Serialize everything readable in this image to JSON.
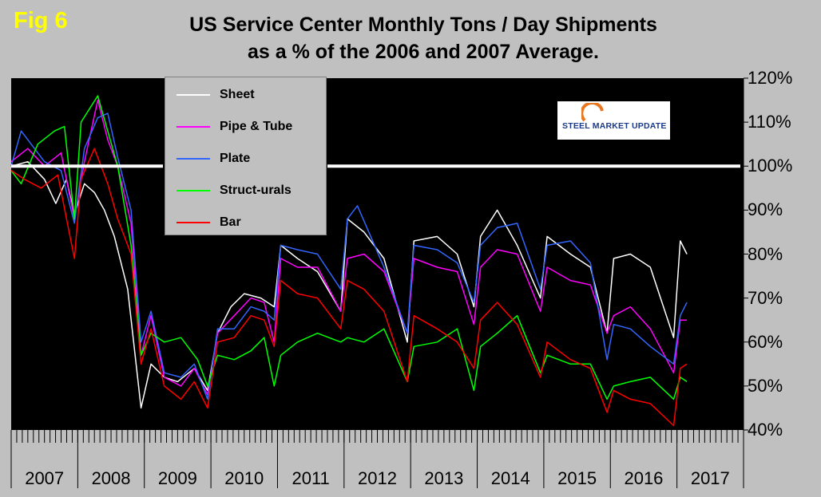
{
  "fig_label": "Fig 6",
  "title_line1": "US Service Center Monthly Tons / Day Shipments",
  "title_line2": "as a % of the 2006 and 2007 Average.",
  "logo": {
    "text": "STEEL MARKET UPDATE"
  },
  "colors": {
    "Sheet": "#ffffff",
    "Pipe & Tube": "#ff00ff",
    "Plate": "#3366ff",
    "Struct-urals": "#00ff00",
    "Bar": "#ff0000",
    "background": "#000000",
    "reference_line": "#ffffff"
  },
  "chart_data": {
    "type": "line",
    "title": "US Service Center Monthly Tons / Day Shipments as a % of the 2006 and 2007 Average.",
    "xlabel": "",
    "ylabel": "",
    "ylim": [
      40,
      120
    ],
    "ytick_labels": [
      "120%",
      "110%",
      "100%",
      "90%",
      "80%",
      "70%",
      "60%",
      "50%",
      "40%"
    ],
    "ytick_values": [
      120,
      110,
      100,
      90,
      80,
      70,
      60,
      50,
      40
    ],
    "x_years": [
      "2007",
      "2008",
      "2009",
      "2010",
      "2011",
      "2012",
      "2013",
      "2014",
      "2015",
      "2016",
      "2017"
    ],
    "reference_line": 100,
    "grid": false,
    "legend_position": "top-left",
    "series": [
      {
        "name": "Sheet",
        "points": [
          [
            2007.0,
            100
          ],
          [
            2007.25,
            101
          ],
          [
            2007.5,
            97
          ],
          [
            2007.67,
            91.5
          ],
          [
            2007.83,
            97
          ],
          [
            2007.95,
            89
          ],
          [
            2008.1,
            96
          ],
          [
            2008.25,
            94
          ],
          [
            2008.4,
            90
          ],
          [
            2008.55,
            84
          ],
          [
            2008.75,
            72
          ],
          [
            2008.95,
            45
          ],
          [
            2009.1,
            55
          ],
          [
            2009.3,
            52
          ],
          [
            2009.5,
            51
          ],
          [
            2009.75,
            54
          ],
          [
            2009.95,
            49
          ],
          [
            2010.1,
            62
          ],
          [
            2010.3,
            68
          ],
          [
            2010.5,
            71
          ],
          [
            2010.75,
            70
          ],
          [
            2010.95,
            68
          ],
          [
            2011.05,
            82
          ],
          [
            2011.3,
            79
          ],
          [
            2011.6,
            76
          ],
          [
            2011.95,
            67
          ],
          [
            2012.05,
            88
          ],
          [
            2012.3,
            85
          ],
          [
            2012.6,
            79
          ],
          [
            2012.95,
            60
          ],
          [
            2013.05,
            83
          ],
          [
            2013.4,
            84
          ],
          [
            2013.7,
            80
          ],
          [
            2013.95,
            68
          ],
          [
            2014.05,
            84
          ],
          [
            2014.3,
            90
          ],
          [
            2014.6,
            82
          ],
          [
            2014.95,
            70
          ],
          [
            2015.05,
            84
          ],
          [
            2015.4,
            80
          ],
          [
            2015.7,
            77
          ],
          [
            2015.95,
            62
          ],
          [
            2016.05,
            79
          ],
          [
            2016.3,
            80
          ],
          [
            2016.6,
            77
          ],
          [
            2016.95,
            61
          ],
          [
            2017.05,
            83
          ],
          [
            2017.15,
            80
          ]
        ]
      },
      {
        "name": "Pipe & Tube",
        "points": [
          [
            2007.0,
            101
          ],
          [
            2007.25,
            104
          ],
          [
            2007.5,
            100
          ],
          [
            2007.75,
            103
          ],
          [
            2007.95,
            88
          ],
          [
            2008.1,
            101
          ],
          [
            2008.3,
            115
          ],
          [
            2008.45,
            106
          ],
          [
            2008.6,
            100
          ],
          [
            2008.8,
            87
          ],
          [
            2008.95,
            57
          ],
          [
            2009.1,
            66
          ],
          [
            2009.3,
            52
          ],
          [
            2009.55,
            50
          ],
          [
            2009.75,
            54
          ],
          [
            2009.95,
            48
          ],
          [
            2010.1,
            62
          ],
          [
            2010.35,
            66
          ],
          [
            2010.6,
            70
          ],
          [
            2010.8,
            69
          ],
          [
            2010.95,
            60
          ],
          [
            2011.05,
            79
          ],
          [
            2011.3,
            77
          ],
          [
            2011.6,
            77
          ],
          [
            2011.95,
            67
          ],
          [
            2012.05,
            79
          ],
          [
            2012.3,
            80
          ],
          [
            2012.6,
            76
          ],
          [
            2012.95,
            62
          ],
          [
            2013.05,
            79
          ],
          [
            2013.4,
            77
          ],
          [
            2013.7,
            76
          ],
          [
            2013.95,
            64
          ],
          [
            2014.05,
            77
          ],
          [
            2014.3,
            81
          ],
          [
            2014.6,
            80
          ],
          [
            2014.95,
            67
          ],
          [
            2015.05,
            77
          ],
          [
            2015.4,
            74
          ],
          [
            2015.7,
            73
          ],
          [
            2015.95,
            62
          ],
          [
            2016.05,
            66
          ],
          [
            2016.3,
            68
          ],
          [
            2016.6,
            63
          ],
          [
            2016.95,
            53
          ],
          [
            2017.05,
            65
          ],
          [
            2017.15,
            65
          ]
        ]
      },
      {
        "name": "Plate",
        "points": [
          [
            2007.0,
            100
          ],
          [
            2007.15,
            108
          ],
          [
            2007.5,
            101
          ],
          [
            2007.75,
            99
          ],
          [
            2007.95,
            87
          ],
          [
            2008.1,
            104
          ],
          [
            2008.3,
            111
          ],
          [
            2008.45,
            112
          ],
          [
            2008.6,
            102
          ],
          [
            2008.8,
            90
          ],
          [
            2008.95,
            60
          ],
          [
            2009.1,
            67
          ],
          [
            2009.3,
            53
          ],
          [
            2009.55,
            52
          ],
          [
            2009.75,
            55
          ],
          [
            2009.95,
            47
          ],
          [
            2010.1,
            63
          ],
          [
            2010.35,
            63
          ],
          [
            2010.6,
            68
          ],
          [
            2010.8,
            67
          ],
          [
            2010.95,
            65
          ],
          [
            2011.05,
            82
          ],
          [
            2011.3,
            81
          ],
          [
            2011.6,
            80
          ],
          [
            2011.95,
            72
          ],
          [
            2012.05,
            88
          ],
          [
            2012.2,
            91
          ],
          [
            2012.4,
            84
          ],
          [
            2012.6,
            77
          ],
          [
            2012.95,
            62
          ],
          [
            2013.05,
            82
          ],
          [
            2013.4,
            81
          ],
          [
            2013.7,
            78
          ],
          [
            2013.95,
            69
          ],
          [
            2014.05,
            82
          ],
          [
            2014.3,
            86
          ],
          [
            2014.6,
            87
          ],
          [
            2014.95,
            72
          ],
          [
            2015.05,
            82
          ],
          [
            2015.4,
            83
          ],
          [
            2015.7,
            78
          ],
          [
            2015.95,
            56
          ],
          [
            2016.05,
            64
          ],
          [
            2016.3,
            63
          ],
          [
            2016.6,
            59
          ],
          [
            2016.95,
            55
          ],
          [
            2017.05,
            66
          ],
          [
            2017.15,
            69
          ]
        ]
      },
      {
        "name": "Struct-urals",
        "points": [
          [
            2007.0,
            99
          ],
          [
            2007.15,
            96
          ],
          [
            2007.4,
            105
          ],
          [
            2007.65,
            108
          ],
          [
            2007.8,
            109
          ],
          [
            2007.95,
            88
          ],
          [
            2008.05,
            110
          ],
          [
            2008.3,
            116
          ],
          [
            2008.45,
            108
          ],
          [
            2008.6,
            100
          ],
          [
            2008.8,
            82
          ],
          [
            2008.95,
            57
          ],
          [
            2009.1,
            62
          ],
          [
            2009.3,
            60
          ],
          [
            2009.55,
            61
          ],
          [
            2009.8,
            56
          ],
          [
            2009.95,
            50
          ],
          [
            2010.1,
            57
          ],
          [
            2010.35,
            56
          ],
          [
            2010.6,
            58
          ],
          [
            2010.8,
            61
          ],
          [
            2010.95,
            50
          ],
          [
            2011.05,
            57
          ],
          [
            2011.3,
            60
          ],
          [
            2011.6,
            62
          ],
          [
            2011.95,
            60
          ],
          [
            2012.05,
            61
          ],
          [
            2012.3,
            60
          ],
          [
            2012.6,
            63
          ],
          [
            2012.95,
            51
          ],
          [
            2013.05,
            59
          ],
          [
            2013.4,
            60
          ],
          [
            2013.7,
            63
          ],
          [
            2013.95,
            49
          ],
          [
            2014.05,
            59
          ],
          [
            2014.3,
            62
          ],
          [
            2014.6,
            66
          ],
          [
            2014.95,
            53
          ],
          [
            2015.05,
            57
          ],
          [
            2015.4,
            55
          ],
          [
            2015.7,
            55
          ],
          [
            2015.95,
            47
          ],
          [
            2016.05,
            50
          ],
          [
            2016.3,
            51
          ],
          [
            2016.6,
            52
          ],
          [
            2016.95,
            47
          ],
          [
            2017.05,
            52
          ],
          [
            2017.15,
            51
          ]
        ]
      },
      {
        "name": "Bar",
        "points": [
          [
            2007.0,
            99
          ],
          [
            2007.2,
            97
          ],
          [
            2007.45,
            95
          ],
          [
            2007.7,
            98
          ],
          [
            2007.95,
            79
          ],
          [
            2008.05,
            97
          ],
          [
            2008.25,
            104
          ],
          [
            2008.45,
            96
          ],
          [
            2008.6,
            88
          ],
          [
            2008.8,
            80
          ],
          [
            2008.95,
            55
          ],
          [
            2009.1,
            63
          ],
          [
            2009.3,
            50
          ],
          [
            2009.55,
            47
          ],
          [
            2009.75,
            51
          ],
          [
            2009.95,
            45
          ],
          [
            2010.1,
            60
          ],
          [
            2010.35,
            61
          ],
          [
            2010.6,
            66
          ],
          [
            2010.8,
            65
          ],
          [
            2010.95,
            59
          ],
          [
            2011.05,
            74
          ],
          [
            2011.3,
            71
          ],
          [
            2011.6,
            70
          ],
          [
            2011.95,
            63
          ],
          [
            2012.05,
            74
          ],
          [
            2012.3,
            72
          ],
          [
            2012.6,
            67
          ],
          [
            2012.95,
            51
          ],
          [
            2013.05,
            66
          ],
          [
            2013.4,
            63
          ],
          [
            2013.7,
            60
          ],
          [
            2013.95,
            54
          ],
          [
            2014.05,
            65
          ],
          [
            2014.3,
            69
          ],
          [
            2014.6,
            64
          ],
          [
            2014.95,
            52
          ],
          [
            2015.05,
            60
          ],
          [
            2015.4,
            56
          ],
          [
            2015.7,
            54
          ],
          [
            2015.95,
            44
          ],
          [
            2016.05,
            49
          ],
          [
            2016.3,
            47
          ],
          [
            2016.6,
            46
          ],
          [
            2016.95,
            41
          ],
          [
            2017.05,
            54
          ],
          [
            2017.15,
            55
          ]
        ]
      }
    ]
  }
}
